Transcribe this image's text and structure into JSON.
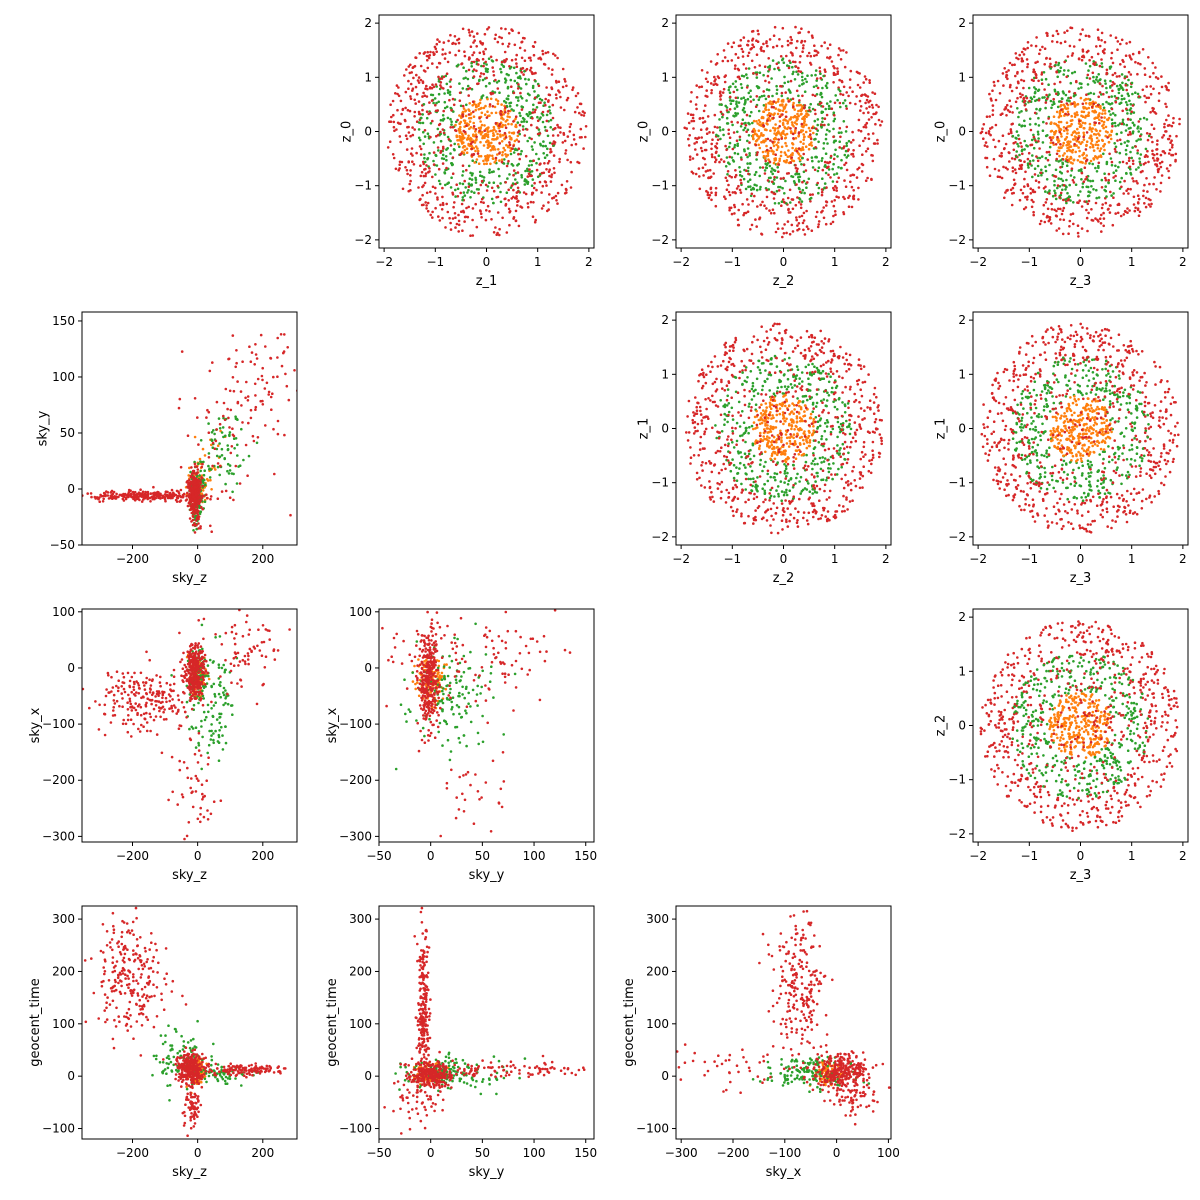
{
  "figure": {
    "grid_rows": 4,
    "grid_cols": 4,
    "empty_cells": [
      [
        0,
        0
      ],
      [
        1,
        1
      ],
      [
        2,
        2
      ],
      [
        3,
        3
      ]
    ],
    "legend": "none",
    "grid": false
  },
  "chart_data": [
    {
      "type": "scatter",
      "row": 0,
      "col": 1,
      "xlabel": "z_1",
      "ylabel": "z_0",
      "xlim": [
        -2.1,
        2.1
      ],
      "ylim": [
        -2.15,
        2.15
      ],
      "xticks": [
        -2,
        -1,
        0,
        1,
        2
      ],
      "yticks": [
        -2,
        -1,
        0,
        1,
        2
      ],
      "xtick_labels": [
        "−2",
        "−1",
        "0",
        "1",
        "2"
      ],
      "ytick_labels": [
        "−2",
        "−1",
        "0",
        "1",
        "2"
      ],
      "pattern": "rings",
      "series": [
        {
          "color": "#d62728",
          "shape": "annulus",
          "r_inner": 1.3,
          "r_outer": 1.95,
          "n": 520
        },
        {
          "color": "#2ca02c",
          "shape": "annulus",
          "r_inner": 0.6,
          "r_outer": 1.35,
          "n": 420
        },
        {
          "color": "#ff7f0e",
          "shape": "disk",
          "r_outer": 0.62,
          "n": 300
        },
        {
          "color": "#d62728",
          "shape": "disk",
          "r_outer": 1.35,
          "n": 240
        }
      ]
    },
    {
      "type": "scatter",
      "row": 0,
      "col": 2,
      "xlabel": "z_2",
      "ylabel": "z_0",
      "xlim": [
        -2.1,
        2.1
      ],
      "ylim": [
        -2.15,
        2.15
      ],
      "xticks": [
        -2,
        -1,
        0,
        1,
        2
      ],
      "yticks": [
        -2,
        -1,
        0,
        1,
        2
      ],
      "xtick_labels": [
        "−2",
        "−1",
        "0",
        "1",
        "2"
      ],
      "ytick_labels": [
        "−2",
        "−1",
        "0",
        "1",
        "2"
      ],
      "pattern": "rings",
      "series": [
        {
          "color": "#d62728",
          "shape": "annulus",
          "r_inner": 1.3,
          "r_outer": 1.95,
          "n": 520
        },
        {
          "color": "#2ca02c",
          "shape": "annulus",
          "r_inner": 0.6,
          "r_outer": 1.35,
          "n": 420
        },
        {
          "color": "#ff7f0e",
          "shape": "disk",
          "r_outer": 0.62,
          "n": 300
        },
        {
          "color": "#d62728",
          "shape": "disk",
          "r_outer": 1.35,
          "n": 200
        }
      ]
    },
    {
      "type": "scatter",
      "row": 0,
      "col": 3,
      "xlabel": "z_3",
      "ylabel": "z_0",
      "xlim": [
        -2.1,
        2.1
      ],
      "ylim": [
        -2.15,
        2.15
      ],
      "xticks": [
        -2,
        -1,
        0,
        1,
        2
      ],
      "yticks": [
        -2,
        -1,
        0,
        1,
        2
      ],
      "xtick_labels": [
        "−2",
        "−1",
        "0",
        "1",
        "2"
      ],
      "ytick_labels": [
        "−2",
        "−1",
        "0",
        "1",
        "2"
      ],
      "pattern": "rings",
      "series": [
        {
          "color": "#d62728",
          "shape": "annulus",
          "r_inner": 1.3,
          "r_outer": 1.95,
          "n": 520
        },
        {
          "color": "#2ca02c",
          "shape": "annulus",
          "r_inner": 0.6,
          "r_outer": 1.35,
          "n": 420
        },
        {
          "color": "#ff7f0e",
          "shape": "disk",
          "r_outer": 0.62,
          "n": 300
        },
        {
          "color": "#d62728",
          "shape": "disk",
          "r_outer": 1.35,
          "n": 200
        }
      ]
    },
    {
      "type": "scatter",
      "row": 1,
      "col": 0,
      "xlabel": "sky_z",
      "ylabel": "sky_y",
      "xlim": [
        -355,
        305
      ],
      "ylim": [
        -50,
        158
      ],
      "xticks": [
        -200,
        0,
        200
      ],
      "yticks": [
        -50,
        0,
        50,
        100,
        150
      ],
      "xtick_labels": [
        "−200",
        "0",
        "200"
      ],
      "ytick_labels": [
        "−50",
        "0",
        "50",
        "100",
        "150"
      ],
      "pattern": "clusters",
      "series": [
        {
          "color": "#ff7f0e",
          "clusters": [
            {
              "cx": 0,
              "cy": 0,
              "sx": 14,
              "sy": 8,
              "n": 120
            },
            {
              "cx": 40,
              "cy": 30,
              "sx": 25,
              "sy": 15,
              "n": 20
            }
          ]
        },
        {
          "color": "#2ca02c",
          "clusters": [
            {
              "cx": 0,
              "cy": -2,
              "sx": 12,
              "sy": 10,
              "n": 140
            },
            {
              "cx": 80,
              "cy": 35,
              "sx": 35,
              "sy": 18,
              "n": 70
            },
            {
              "cx": -10,
              "cy": -20,
              "sx": 8,
              "sy": 8,
              "n": 25
            }
          ]
        },
        {
          "color": "#d62728",
          "clusters": [
            {
              "cx": -160,
              "cy": -6,
              "sx": 80,
              "sy": 2,
              "n": 260
            },
            {
              "cx": -10,
              "cy": -3,
              "sx": 10,
              "sy": 8,
              "n": 320
            },
            {
              "cx": 200,
              "cy": 90,
              "sx": 55,
              "sy": 30,
              "n": 70
            },
            {
              "cx": 80,
              "cy": 50,
              "sx": 60,
              "sy": 40,
              "n": 60
            },
            {
              "cx": -5,
              "cy": -25,
              "sx": 8,
              "sy": 8,
              "n": 40
            }
          ]
        }
      ]
    },
    {
      "type": "scatter",
      "row": 1,
      "col": 2,
      "xlabel": "z_2",
      "ylabel": "z_1",
      "xlim": [
        -2.1,
        2.1
      ],
      "ylim": [
        -2.15,
        2.15
      ],
      "xticks": [
        -2,
        -1,
        0,
        1,
        2
      ],
      "yticks": [
        -2,
        -1,
        0,
        1,
        2
      ],
      "xtick_labels": [
        "−2",
        "−1",
        "0",
        "1",
        "2"
      ],
      "ytick_labels": [
        "−2",
        "−1",
        "0",
        "1",
        "2"
      ],
      "pattern": "rings",
      "series": [
        {
          "color": "#d62728",
          "shape": "annulus",
          "r_inner": 1.3,
          "r_outer": 1.95,
          "n": 520
        },
        {
          "color": "#2ca02c",
          "shape": "annulus",
          "r_inner": 0.6,
          "r_outer": 1.35,
          "n": 420
        },
        {
          "color": "#ff7f0e",
          "shape": "disk",
          "r_outer": 0.62,
          "n": 300
        },
        {
          "color": "#d62728",
          "shape": "disk",
          "r_outer": 1.35,
          "n": 200
        }
      ]
    },
    {
      "type": "scatter",
      "row": 1,
      "col": 3,
      "xlabel": "z_3",
      "ylabel": "z_1",
      "xlim": [
        -2.1,
        2.1
      ],
      "ylim": [
        -2.15,
        2.15
      ],
      "xticks": [
        -2,
        -1,
        0,
        1,
        2
      ],
      "yticks": [
        -2,
        -1,
        0,
        1,
        2
      ],
      "xtick_labels": [
        "−2",
        "−1",
        "0",
        "1",
        "2"
      ],
      "ytick_labels": [
        "−2",
        "−1",
        "0",
        "1",
        "2"
      ],
      "pattern": "rings",
      "series": [
        {
          "color": "#d62728",
          "shape": "annulus",
          "r_inner": 1.3,
          "r_outer": 1.95,
          "n": 520
        },
        {
          "color": "#2ca02c",
          "shape": "annulus",
          "r_inner": 0.6,
          "r_outer": 1.35,
          "n": 420
        },
        {
          "color": "#ff7f0e",
          "shape": "disk",
          "r_outer": 0.62,
          "n": 300
        },
        {
          "color": "#d62728",
          "shape": "disk",
          "r_outer": 1.35,
          "n": 200
        }
      ]
    },
    {
      "type": "scatter",
      "row": 2,
      "col": 0,
      "xlabel": "sky_z",
      "ylabel": "sky_x",
      "xlim": [
        -355,
        305
      ],
      "ylim": [
        -310,
        105
      ],
      "xticks": [
        -200,
        0,
        200
      ],
      "yticks": [
        -300,
        -200,
        -100,
        0,
        100
      ],
      "xtick_labels": [
        "−200",
        "0",
        "200"
      ],
      "ytick_labels": [
        "−300",
        "−200",
        "−100",
        "0",
        "100"
      ],
      "pattern": "clusters",
      "series": [
        {
          "color": "#ff7f0e",
          "clusters": [
            {
              "cx": 0,
              "cy": -20,
              "sx": 12,
              "sy": 18,
              "n": 120
            }
          ]
        },
        {
          "color": "#2ca02c",
          "clusters": [
            {
              "cx": 40,
              "cy": -60,
              "sx": 40,
              "sy": 50,
              "n": 120
            },
            {
              "cx": 0,
              "cy": -10,
              "sx": 15,
              "sy": 20,
              "n": 80
            }
          ]
        },
        {
          "color": "#d62728",
          "clusters": [
            {
              "cx": -160,
              "cy": -55,
              "sx": 75,
              "sy": 30,
              "n": 220
            },
            {
              "cx": -10,
              "cy": -5,
              "sx": 15,
              "sy": 25,
              "n": 320
            },
            {
              "cx": 0,
              "cy": -220,
              "sx": 30,
              "sy": 40,
              "n": 45
            },
            {
              "cx": 160,
              "cy": 30,
              "sx": 70,
              "sy": 35,
              "n": 70
            }
          ]
        }
      ]
    },
    {
      "type": "scatter",
      "row": 2,
      "col": 1,
      "xlabel": "sky_y",
      "ylabel": "sky_x",
      "xlim": [
        -50,
        158
      ],
      "ylim": [
        -310,
        105
      ],
      "xticks": [
        -50,
        0,
        50,
        100,
        150
      ],
      "yticks": [
        -300,
        -200,
        -100,
        0,
        100
      ],
      "xtick_labels": [
        "−50",
        "0",
        "50",
        "100",
        "150"
      ],
      "ytick_labels": [
        "−300",
        "−200",
        "−100",
        "0",
        "100"
      ],
      "pattern": "clusters",
      "series": [
        {
          "color": "#ff7f0e",
          "clusters": [
            {
              "cx": 0,
              "cy": -20,
              "sx": 8,
              "sy": 20,
              "n": 120
            }
          ]
        },
        {
          "color": "#2ca02c",
          "clusters": [
            {
              "cx": 20,
              "cy": -50,
              "sx": 20,
              "sy": 50,
              "n": 140
            }
          ]
        },
        {
          "color": "#d62728",
          "clusters": [
            {
              "cx": -3,
              "cy": -20,
              "sx": 5,
              "sy": 45,
              "n": 330
            },
            {
              "cx": 40,
              "cy": 20,
              "sx": 45,
              "sy": 50,
              "n": 120
            },
            {
              "cx": 40,
              "cy": -220,
              "sx": 20,
              "sy": 40,
              "n": 30
            }
          ]
        }
      ]
    },
    {
      "type": "scatter",
      "row": 2,
      "col": 3,
      "xlabel": "z_3",
      "ylabel": "z_2",
      "xlim": [
        -2.1,
        2.1
      ],
      "ylim": [
        -2.15,
        2.15
      ],
      "xticks": [
        -2,
        -1,
        0,
        1,
        2
      ],
      "yticks": [
        -2,
        -1,
        0,
        1,
        2
      ],
      "xtick_labels": [
        "−2",
        "−1",
        "0",
        "1",
        "2"
      ],
      "ytick_labels": [
        "−2",
        "−1",
        "0",
        "1",
        "2"
      ],
      "pattern": "rings",
      "series": [
        {
          "color": "#d62728",
          "shape": "annulus",
          "r_inner": 1.3,
          "r_outer": 1.95,
          "n": 520
        },
        {
          "color": "#2ca02c",
          "shape": "annulus",
          "r_inner": 0.6,
          "r_outer": 1.35,
          "n": 420
        },
        {
          "color": "#ff7f0e",
          "shape": "disk",
          "r_outer": 0.62,
          "n": 300
        },
        {
          "color": "#d62728",
          "shape": "disk",
          "r_outer": 1.35,
          "n": 200
        }
      ]
    },
    {
      "type": "scatter",
      "row": 3,
      "col": 0,
      "xlabel": "sky_z",
      "ylabel": "geocent_time",
      "xlim": [
        -355,
        305
      ],
      "ylim": [
        -120,
        325
      ],
      "xticks": [
        -200,
        0,
        200
      ],
      "yticks": [
        -100,
        0,
        100,
        200,
        300
      ],
      "xtick_labels": [
        "−200",
        "0",
        "200"
      ],
      "ytick_labels": [
        "−100",
        "0",
        "100",
        "200",
        "300"
      ],
      "pattern": "clusters",
      "series": [
        {
          "color": "#ff7f0e",
          "clusters": [
            {
              "cx": 0,
              "cy": 10,
              "sx": 12,
              "sy": 12,
              "n": 100
            }
          ]
        },
        {
          "color": "#2ca02c",
          "clusters": [
            {
              "cx": -60,
              "cy": 40,
              "sx": 40,
              "sy": 30,
              "n": 90
            },
            {
              "cx": 80,
              "cy": 5,
              "sx": 40,
              "sy": 8,
              "n": 60
            }
          ]
        },
        {
          "color": "#d62728",
          "clusters": [
            {
              "cx": -210,
              "cy": 190,
              "sx": 60,
              "sy": 55,
              "n": 240
            },
            {
              "cx": -20,
              "cy": 15,
              "sx": 20,
              "sy": 15,
              "n": 300
            },
            {
              "cx": 150,
              "cy": 12,
              "sx": 65,
              "sy": 5,
              "n": 130
            },
            {
              "cx": -20,
              "cy": -60,
              "sx": 12,
              "sy": 20,
              "n": 70
            }
          ]
        }
      ]
    },
    {
      "type": "scatter",
      "row": 3,
      "col": 1,
      "xlabel": "sky_y",
      "ylabel": "geocent_time",
      "xlim": [
        -50,
        158
      ],
      "ylim": [
        -120,
        325
      ],
      "xticks": [
        -50,
        0,
        50,
        100,
        150
      ],
      "yticks": [
        -100,
        0,
        100,
        200,
        300
      ],
      "xtick_labels": [
        "−50",
        "0",
        "50",
        "100",
        "150"
      ],
      "ytick_labels": [
        "−100",
        "0",
        "100",
        "200",
        "300"
      ],
      "pattern": "clusters",
      "series": [
        {
          "color": "#ff7f0e",
          "clusters": [
            {
              "cx": 0,
              "cy": 5,
              "sx": 8,
              "sy": 10,
              "n": 100
            }
          ]
        },
        {
          "color": "#2ca02c",
          "clusters": [
            {
              "cx": 20,
              "cy": 5,
              "sx": 25,
              "sy": 15,
              "n": 140
            }
          ]
        },
        {
          "color": "#d62728",
          "clusters": [
            {
              "cx": -7,
              "cy": 130,
              "sx": 3,
              "sy": 70,
              "n": 220
            },
            {
              "cx": 0,
              "cy": 5,
              "sx": 10,
              "sy": 12,
              "n": 250
            },
            {
              "cx": 70,
              "cy": 12,
              "sx": 45,
              "sy": 8,
              "n": 100
            },
            {
              "cx": -15,
              "cy": -40,
              "sx": 15,
              "sy": 25,
              "n": 60
            }
          ]
        }
      ]
    },
    {
      "type": "scatter",
      "row": 3,
      "col": 2,
      "xlabel": "sky_x",
      "ylabel": "geocent_time",
      "xlim": [
        -310,
        105
      ],
      "ylim": [
        -120,
        325
      ],
      "xticks": [
        -300,
        -200,
        -100,
        0,
        100
      ],
      "yticks": [
        -100,
        0,
        100,
        200,
        300
      ],
      "xtick_labels": [
        "−300",
        "−200",
        "−100",
        "0",
        "100"
      ],
      "ytick_labels": [
        "−100",
        "0",
        "100",
        "200",
        "300"
      ],
      "pattern": "clusters",
      "series": [
        {
          "color": "#ff7f0e",
          "clusters": [
            {
              "cx": -15,
              "cy": 5,
              "sx": 15,
              "sy": 10,
              "n": 100
            }
          ]
        },
        {
          "color": "#2ca02c",
          "clusters": [
            {
              "cx": -60,
              "cy": 5,
              "sx": 45,
              "sy": 15,
              "n": 140
            }
          ]
        },
        {
          "color": "#d62728",
          "clusters": [
            {
              "cx": -70,
              "cy": 170,
              "sx": 25,
              "sy": 70,
              "n": 230
            },
            {
              "cx": 10,
              "cy": 10,
              "sx": 25,
              "sy": 15,
              "n": 280
            },
            {
              "cx": -220,
              "cy": 15,
              "sx": 60,
              "sy": 20,
              "n": 40
            },
            {
              "cx": 30,
              "cy": -40,
              "sx": 25,
              "sy": 20,
              "n": 70
            }
          ]
        }
      ]
    }
  ]
}
